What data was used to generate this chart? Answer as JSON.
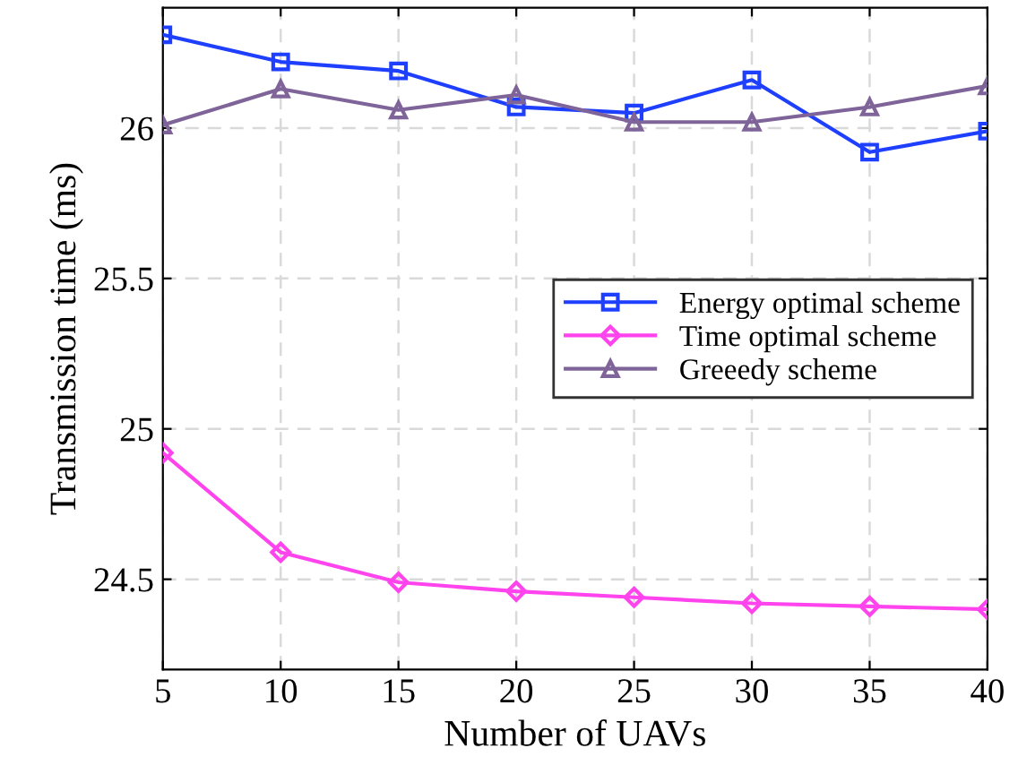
{
  "chart_data": {
    "type": "line",
    "xlabel": "Number of UAVs",
    "ylabel": "Transmission time (ms)",
    "x": [
      5,
      10,
      15,
      20,
      25,
      30,
      35,
      40
    ],
    "series": [
      {
        "name": "Energy optimal scheme",
        "color": "#1f3fff",
        "marker": "square",
        "values": [
          26.31,
          26.22,
          26.19,
          26.07,
          26.05,
          26.16,
          25.92,
          25.99
        ]
      },
      {
        "name": "Time optimal scheme",
        "color": "#ff44ee",
        "marker": "diamond",
        "values": [
          24.92,
          24.59,
          24.49,
          24.46,
          24.44,
          24.42,
          24.41,
          24.4
        ]
      },
      {
        "name": "Greeedy scheme",
        "color": "#7e6499",
        "marker": "triangle",
        "values": [
          26.01,
          26.13,
          26.06,
          26.11,
          26.02,
          26.02,
          26.07,
          26.14
        ]
      }
    ],
    "xlim": [
      5,
      40
    ],
    "xticks": [
      5,
      10,
      15,
      20,
      25,
      30,
      35,
      40
    ],
    "ylim": [
      24.2,
      26.4
    ],
    "yticks": [
      24.5,
      25,
      25.5,
      26
    ],
    "grid": true,
    "legend": "right",
    "line_style": "solid"
  }
}
